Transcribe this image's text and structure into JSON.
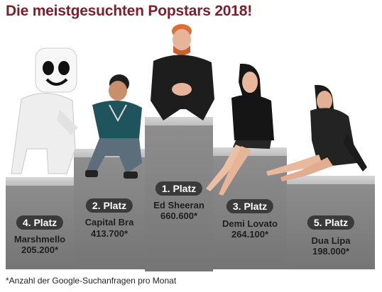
{
  "title": "Die meistgesuchten Popstars 2018!",
  "footnote": "*Anzahl der Google-Suchanfragen pro Monat",
  "chart_data": {
    "type": "bar",
    "title": "Die meistgesuchten Popstars 2018!",
    "categories": [
      "Marshmello",
      "Capital Bra",
      "Ed Sheeran",
      "Demi Lovato",
      "Dua Lipa"
    ],
    "ranks": [
      "4. Platz",
      "2. Platz",
      "1. Platz",
      "3. Platz",
      "5. Platz"
    ],
    "values": [
      205200,
      413700,
      660600,
      264100,
      198000
    ],
    "value_labels": [
      "205.200*",
      "413.700*",
      "660.600*",
      "264.100*",
      "198.000*"
    ]
  },
  "colors": {
    "title": "#7a1f2b",
    "badge": "#3a3a3a",
    "podium": "#8a8a8a"
  }
}
